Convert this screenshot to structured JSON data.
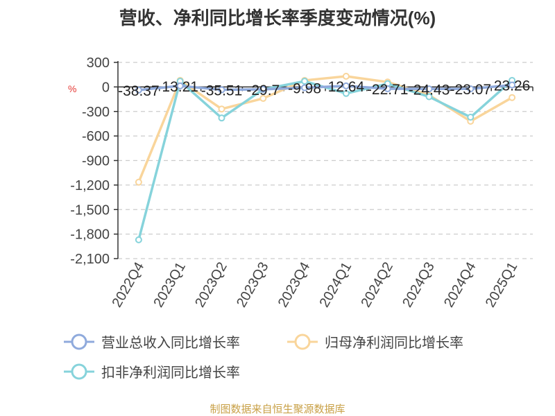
{
  "title": "营收、净利同比增长率季度变动情况(%)",
  "unit_label": "%",
  "footer": "制图数据来自恒生聚源数据库",
  "colors": {
    "revenue": "#8faadc",
    "net_profit": "#f9d59b",
    "deducted_net_profit": "#86d3db",
    "grid": "#cccccc",
    "axis": "#333333"
  },
  "chart_data": {
    "type": "line",
    "categories": [
      "2022Q4",
      "2023Q1",
      "2023Q2",
      "2023Q3",
      "2023Q4",
      "2024Q1",
      "2024Q2",
      "2024Q3",
      "2024Q4",
      "2025Q1"
    ],
    "ylim": [
      -2100,
      300
    ],
    "yticks": [
      300,
      0,
      -300,
      -600,
      -900,
      -1200,
      -1500,
      -1800,
      -2100
    ],
    "ytick_labels": [
      "300",
      "0",
      "-300",
      "-600",
      "-900",
      "-1,200",
      "-1,500",
      "-1,800",
      "-2,100"
    ],
    "grid": true,
    "legend_position": "bottom",
    "series": [
      {
        "name": "营业总收入同比增长率",
        "values": [
          -38.37,
          13.21,
          -35.51,
          -29.7,
          -9.98,
          12.64,
          -22.71,
          -24.43,
          -23.07,
          23.26
        ],
        "labels": [
          "-38.37",
          "13.21",
          "-35.51",
          "-29.7",
          "-9.98",
          "12.64",
          "-22.71",
          "-24.43",
          "-23.07",
          "23.26"
        ]
      },
      {
        "name": "归母净利润同比增长率",
        "values": [
          -1165,
          80,
          -270,
          -140,
          80,
          130,
          60,
          -100,
          -420,
          -130
        ]
      },
      {
        "name": "扣非净利润同比增长率",
        "values": [
          -1870,
          70,
          -380,
          -30,
          70,
          -80,
          40,
          -120,
          -370,
          80
        ]
      }
    ]
  }
}
